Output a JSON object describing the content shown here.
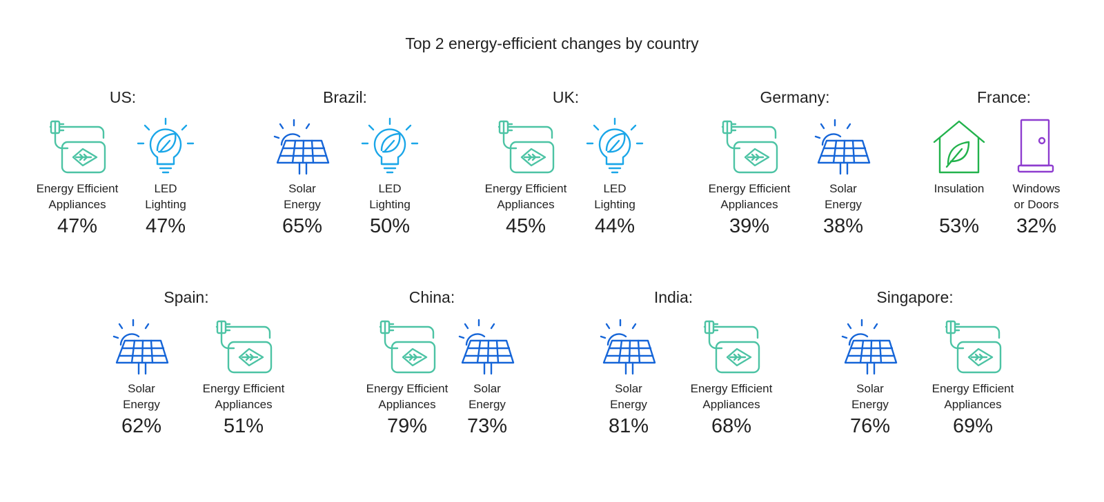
{
  "title": "Top 2 energy-efficient changes by country",
  "colors": {
    "appliances": "#4cc3a4",
    "led": "#1aa6e8",
    "solar": "#1565d8",
    "insulation": "#22b24c",
    "windows": "#8e3ccf"
  },
  "countries": [
    {
      "name": "US:",
      "items": [
        {
          "icon": "plug-leaf-icon",
          "label1": "Energy Efficient",
          "label2": "Appliances",
          "pct": "47%"
        },
        {
          "icon": "led-bulb-icon",
          "label1": "LED",
          "label2": "Lighting",
          "pct": "47%"
        }
      ]
    },
    {
      "name": "Brazil:",
      "items": [
        {
          "icon": "solar-panel-icon",
          "label1": "Solar",
          "label2": "Energy",
          "pct": "65%"
        },
        {
          "icon": "led-bulb-icon",
          "label1": "LED",
          "label2": "Lighting",
          "pct": "50%"
        }
      ]
    },
    {
      "name": "UK:",
      "items": [
        {
          "icon": "plug-leaf-icon",
          "label1": "Energy Efficient",
          "label2": "Appliances",
          "pct": "45%"
        },
        {
          "icon": "led-bulb-icon",
          "label1": "LED",
          "label2": "Lighting",
          "pct": "44%"
        }
      ]
    },
    {
      "name": "Germany:",
      "items": [
        {
          "icon": "plug-leaf-icon",
          "label1": "Energy Efficient",
          "label2": "Appliances",
          "pct": "39%"
        },
        {
          "icon": "solar-panel-icon",
          "label1": "Solar",
          "label2": "Energy",
          "pct": "38%"
        }
      ]
    },
    {
      "name": "France:",
      "items": [
        {
          "icon": "house-leaf-icon",
          "label1": "Insulation",
          "label2": "",
          "pct": "53%"
        },
        {
          "icon": "door-icon",
          "label1": "Windows",
          "label2": "or Doors",
          "pct": "32%"
        }
      ]
    },
    {
      "name": "Spain:",
      "items": [
        {
          "icon": "solar-panel-icon",
          "label1": "Solar",
          "label2": "Energy",
          "pct": "62%"
        },
        {
          "icon": "plug-leaf-icon",
          "label1": "Energy Efficient",
          "label2": "Appliances",
          "pct": "51%"
        }
      ]
    },
    {
      "name": "China:",
      "items": [
        {
          "icon": "plug-leaf-icon",
          "label1": "Energy Efficient",
          "label2": "Appliances",
          "pct": "79%"
        },
        {
          "icon": "solar-panel-icon",
          "label1": "Solar",
          "label2": "Energy",
          "pct": "73%"
        }
      ]
    },
    {
      "name": "India:",
      "items": [
        {
          "icon": "solar-panel-icon",
          "label1": "Solar",
          "label2": "Energy",
          "pct": "81%"
        },
        {
          "icon": "plug-leaf-icon",
          "label1": "Energy Efficient",
          "label2": "Appliances",
          "pct": "68%"
        }
      ]
    },
    {
      "name": "Singapore:",
      "items": [
        {
          "icon": "solar-panel-icon",
          "label1": "Solar",
          "label2": "Energy",
          "pct": "76%"
        },
        {
          "icon": "plug-leaf-icon",
          "label1": "Energy Efficient",
          "label2": "Appliances",
          "pct": "69%"
        }
      ]
    }
  ]
}
